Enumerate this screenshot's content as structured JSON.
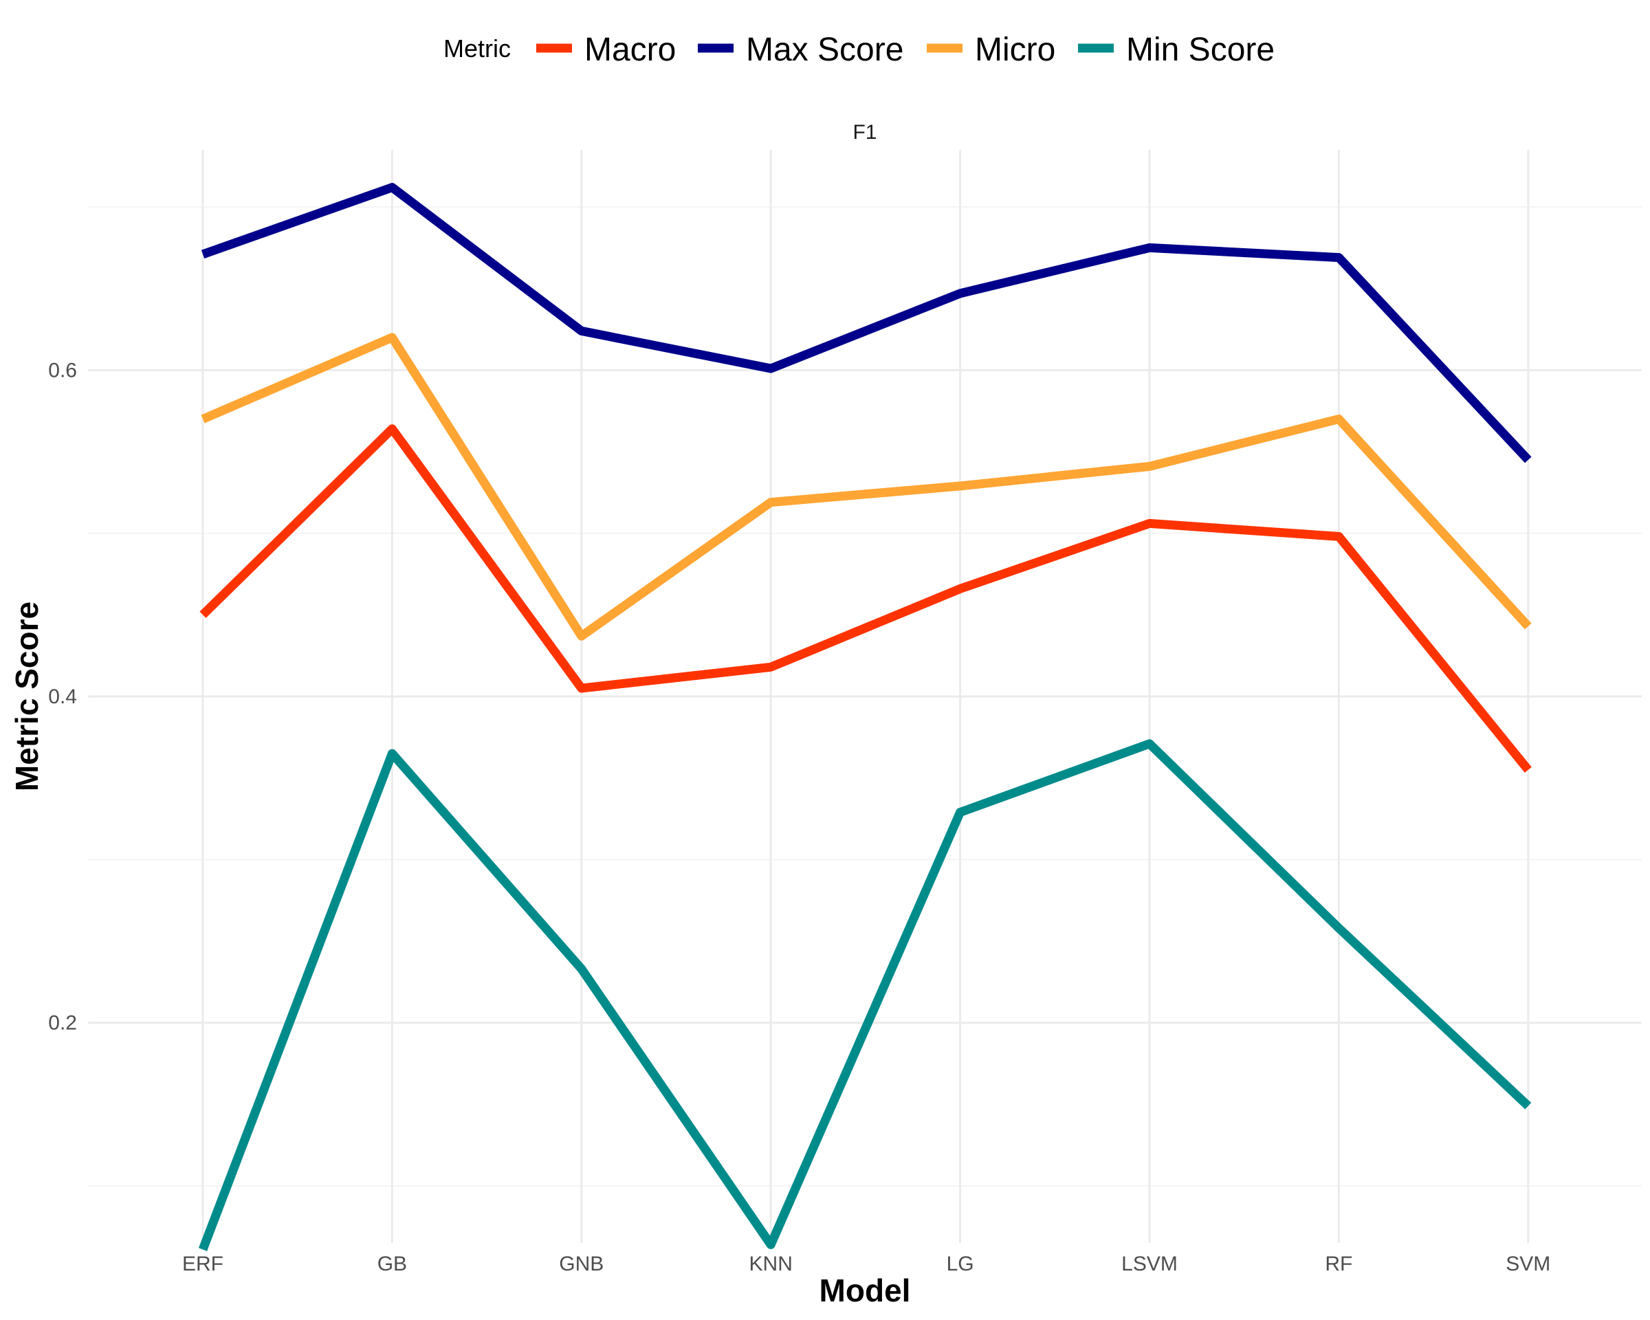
{
  "legend": {
    "title": "Metric",
    "position": "top"
  },
  "chart_data": {
    "type": "line",
    "title": "",
    "facet_label": "F1",
    "xlabel": "Model",
    "ylabel": "Metric Score",
    "categories": [
      "ERF",
      "GB",
      "GNB",
      "KNN",
      "LG",
      "LSVM",
      "RF",
      "SVM"
    ],
    "ylim": [
      0.065,
      0.735
    ],
    "yticks": [
      0.2,
      0.4,
      0.6
    ],
    "ytick_labels": [
      "0.2",
      "0.4",
      "0.6"
    ],
    "grid": true,
    "legend_position": "top",
    "series": [
      {
        "name": "Macro",
        "color": "#FF3300",
        "values": [
          0.45,
          0.564,
          0.405,
          0.418,
          0.466,
          0.506,
          0.498,
          0.355
        ]
      },
      {
        "name": "Max Score",
        "color": "#00008B",
        "values": [
          0.671,
          0.712,
          0.624,
          0.601,
          0.647,
          0.675,
          0.669,
          0.545
        ]
      },
      {
        "name": "Micro",
        "color": "#FFA533",
        "values": [
          0.57,
          0.62,
          0.437,
          0.519,
          0.529,
          0.541,
          0.57,
          0.443
        ]
      },
      {
        "name": "Min Score",
        "color": "#008B8B",
        "values": [
          0.061,
          0.365,
          0.233,
          0.064,
          0.329,
          0.371,
          0.258,
          0.149
        ]
      }
    ]
  }
}
